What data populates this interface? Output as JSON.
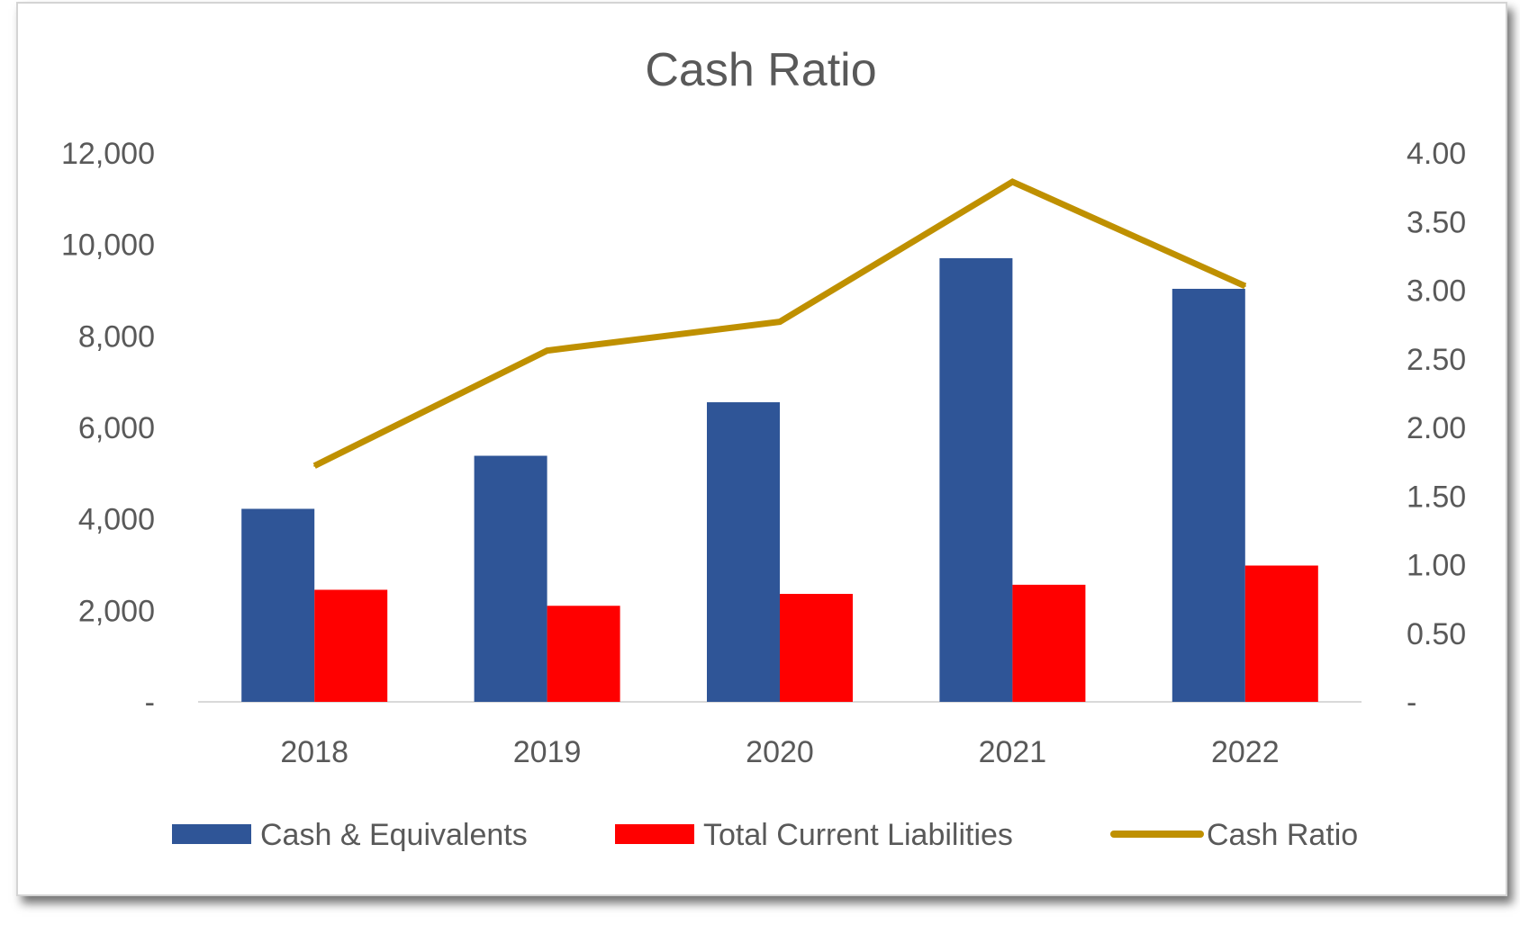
{
  "chart_data": {
    "type": "bar",
    "title": "Cash Ratio",
    "categories": [
      "2018",
      "2019",
      "2020",
      "2021",
      "2022"
    ],
    "series": [
      {
        "name": "Cash & Equivalents",
        "type": "bar",
        "axis": "left",
        "color": "#2F5597",
        "values": [
          4220,
          5380,
          6550,
          9700,
          9030
        ]
      },
      {
        "name": "Total Current Liabilities",
        "type": "bar",
        "axis": "left",
        "color": "#FF0000",
        "values": [
          2450,
          2100,
          2360,
          2560,
          2980
        ]
      },
      {
        "name": "Cash Ratio",
        "type": "line",
        "axis": "right",
        "color": "#BF9000",
        "values": [
          1.72,
          2.56,
          2.77,
          3.79,
          3.03
        ]
      }
    ],
    "y_left": {
      "min": 0,
      "max": 12000,
      "step": 2000,
      "tick_labels": [
        "-",
        "2,000",
        "4,000",
        "6,000",
        "8,000",
        "10,000",
        "12,000"
      ]
    },
    "y_right": {
      "min": 0,
      "max": 4,
      "step": 0.5,
      "tick_labels": [
        "-",
        "0.50",
        "1.00",
        "1.50",
        "2.00",
        "2.50",
        "3.00",
        "3.50",
        "4.00"
      ]
    },
    "grid": false,
    "legend": "bottom"
  }
}
